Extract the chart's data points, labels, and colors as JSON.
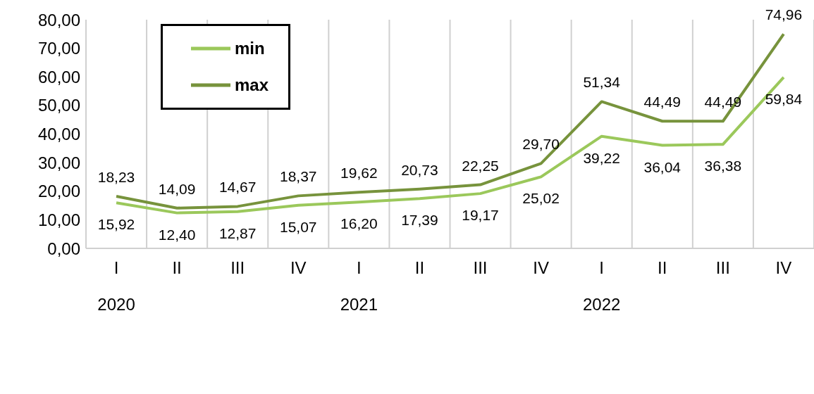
{
  "chart_data": {
    "type": "line",
    "categories": [
      "I",
      "II",
      "III",
      "IV",
      "I",
      "II",
      "III",
      "IV",
      "I",
      "II",
      "III",
      "IV"
    ],
    "annotations": [
      "2020",
      "2021",
      "2022"
    ],
    "series": [
      {
        "name": "min",
        "color": "#9bc85b",
        "values": [
          15.92,
          12.4,
          12.87,
          15.07,
          16.2,
          17.39,
          19.17,
          25.02,
          39.22,
          36.04,
          36.38,
          59.84
        ],
        "value_labels": [
          "15,92",
          "12,40",
          "12,87",
          "15,07",
          "16,20",
          "17,39",
          "19,17",
          "25,02",
          "39,22",
          "36,04",
          "36,38",
          "59,84"
        ]
      },
      {
        "name": "max",
        "color": "#77933c",
        "values": [
          18.23,
          14.09,
          14.67,
          18.37,
          19.62,
          20.73,
          22.25,
          29.7,
          51.34,
          44.49,
          44.49,
          74.96
        ],
        "value_labels": [
          "18,23",
          "14,09",
          "14,67",
          "18,37",
          "19,62",
          "20,73",
          "22,25",
          "29,70",
          "51,34",
          "44,49",
          "44,49",
          "74,96"
        ]
      }
    ],
    "ylim": [
      0,
      80
    ],
    "yticks": [
      {
        "value": 0,
        "label": "0,00"
      },
      {
        "value": 10,
        "label": "10,00"
      },
      {
        "value": 20,
        "label": "20,00"
      },
      {
        "value": 30,
        "label": "30,00"
      },
      {
        "value": 40,
        "label": "40,00"
      },
      {
        "value": 50,
        "label": "50,00"
      },
      {
        "value": 60,
        "label": "60,00"
      },
      {
        "value": 70,
        "label": "70,00"
      },
      {
        "value": 80,
        "label": "80,00"
      }
    ],
    "grid": "x",
    "legend": "top left",
    "marker": "none",
    "line_style": "solid"
  }
}
